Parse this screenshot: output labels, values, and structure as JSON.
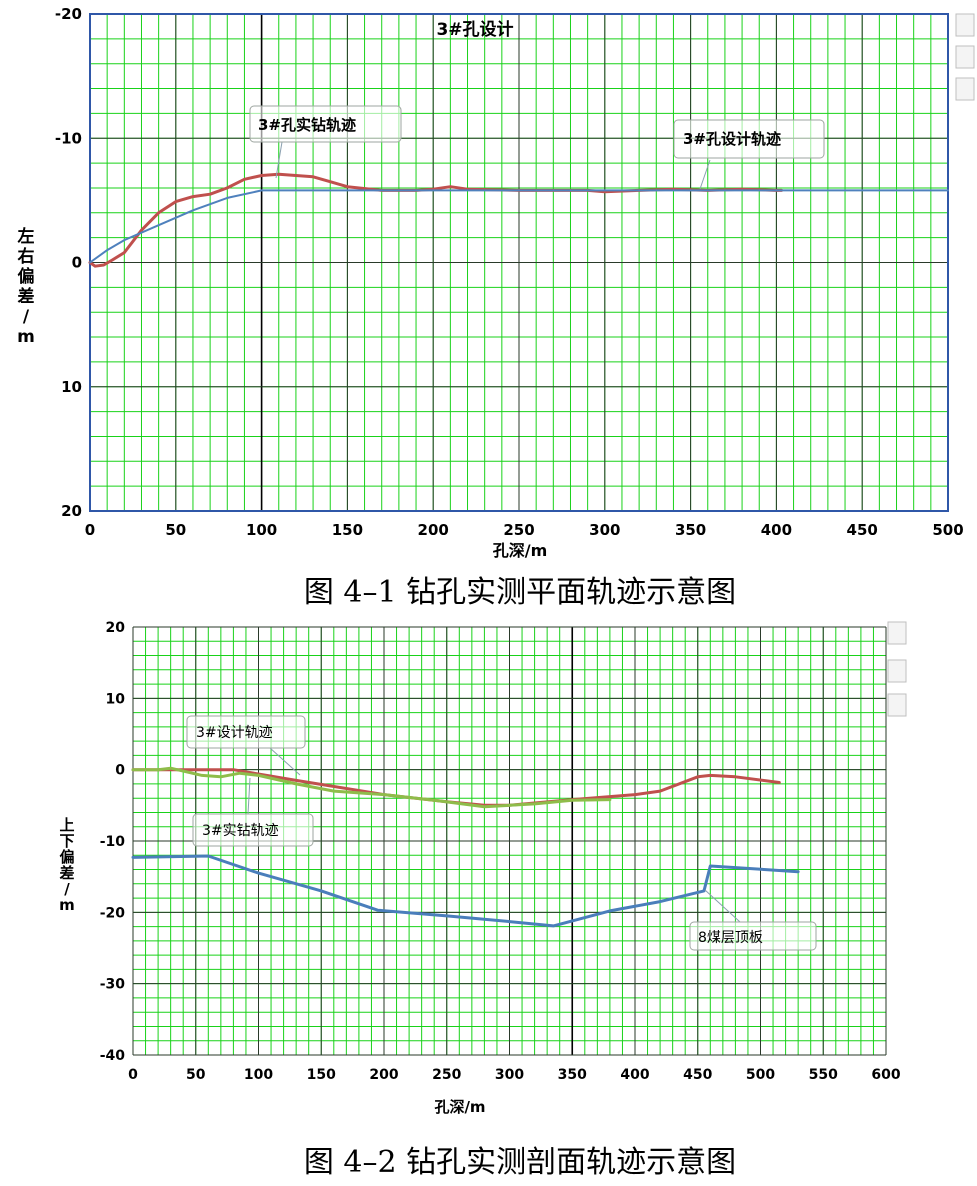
{
  "colors": {
    "grid_minor": "#19d219",
    "grid_major": "#000000",
    "frame": "#2f57a8",
    "actual": "#c0504d",
    "design1": "#4f81bd",
    "design2": "#8fbc4a",
    "coal": "#4a7ebb"
  },
  "chart_data": [
    {
      "type": "line",
      "title": "3#孔设计",
      "xlabel": "孔深/m",
      "ylabel": "左右偏差/m",
      "xlim": [
        0,
        500
      ],
      "ylim": [
        -20,
        20
      ],
      "y_inverted": true,
      "grid": true,
      "x_ticks": [
        "0",
        "50",
        "100",
        "150",
        "200",
        "250",
        "300",
        "350",
        "400",
        "450",
        "500"
      ],
      "y_ticks": [
        "-20",
        "-10",
        "0",
        "10",
        "20"
      ],
      "series": [
        {
          "name": "3#孔实钻轨迹",
          "color_key": "actual",
          "x": [
            0,
            3,
            8,
            13,
            20,
            30,
            40,
            50,
            60,
            70,
            80,
            90,
            100,
            110,
            120,
            130,
            140,
            150,
            170,
            190,
            200,
            210,
            220,
            250,
            270,
            290,
            300,
            320,
            340,
            360,
            380,
            400,
            403
          ],
          "y": [
            0,
            0.3,
            0.2,
            -0.2,
            -0.8,
            -2.6,
            -4.0,
            -4.9,
            -5.3,
            -5.5,
            -6.0,
            -6.7,
            -7.0,
            -7.1,
            -7.0,
            -6.9,
            -6.5,
            -6.1,
            -5.8,
            -5.8,
            -5.9,
            -6.1,
            -5.9,
            -5.8,
            -5.8,
            -5.8,
            -5.7,
            -5.8,
            -5.9,
            -5.8,
            -5.9,
            -5.8,
            -5.8
          ]
        },
        {
          "name": "3#孔设计轨迹",
          "color_key": "design1",
          "x": [
            0,
            10,
            20,
            40,
            60,
            80,
            100,
            500
          ],
          "y": [
            0,
            -1.0,
            -1.8,
            -3.0,
            -4.2,
            -5.2,
            -5.8,
            -5.8
          ]
        }
      ],
      "annotations": [
        {
          "text": "3#孔实钻轨迹"
        },
        {
          "text": "3#孔设计轨迹"
        }
      ],
      "caption": "图 4–1 钻孔实测平面轨迹示意图"
    },
    {
      "type": "line",
      "xlabel": "孔深/m",
      "ylabel": "上下偏差/m",
      "xlim": [
        0,
        600
      ],
      "ylim": [
        -40,
        20
      ],
      "grid": true,
      "x_ticks": [
        "0",
        "50",
        "100",
        "150",
        "200",
        "250",
        "300",
        "350",
        "400",
        "450",
        "500",
        "550",
        "600"
      ],
      "y_ticks": [
        "20",
        "10",
        "0",
        "-10",
        "-20",
        "-30",
        "-40"
      ],
      "series": [
        {
          "name": "3#设计轨迹",
          "color_key": "actual",
          "x": [
            0,
            80,
            130,
            200,
            250,
            280,
            300,
            350,
            400,
            420,
            450,
            460,
            480,
            515
          ],
          "y": [
            0,
            0,
            -1.5,
            -3.5,
            -4.5,
            -5.0,
            -5.0,
            -4.2,
            -3.5,
            -3.0,
            -1.0,
            -0.8,
            -1.0,
            -1.8
          ]
        },
        {
          "name": "3#实钻轨迹",
          "color_key": "design2",
          "x": [
            0,
            20,
            30,
            40,
            55,
            70,
            85,
            100,
            130,
            160,
            200,
            240,
            280,
            300,
            320,
            350,
            380
          ],
          "y": [
            0,
            0,
            0.2,
            -0.2,
            -0.8,
            -1.0,
            -0.5,
            -0.8,
            -2.0,
            -3.0,
            -3.5,
            -4.3,
            -5.2,
            -5.0,
            -4.8,
            -4.3,
            -4.2
          ]
        },
        {
          "name": "8煤层顶板",
          "color_key": "coal",
          "x": [
            0,
            60,
            100,
            150,
            195,
            250,
            300,
            335,
            380,
            420,
            455,
            460,
            530
          ],
          "y": [
            -12.3,
            -12.1,
            -14.5,
            -17,
            -19.7,
            -20.5,
            -21.3,
            -21.9,
            -19.8,
            -18.5,
            -17.0,
            -13.5,
            -14.3
          ]
        }
      ],
      "annotations": [
        {
          "text": "3#设计轨迹"
        },
        {
          "text": "3#实钻轨迹"
        },
        {
          "text": "8煤层顶板"
        }
      ],
      "caption": "图 4–2 钻孔实测剖面轨迹示意图"
    }
  ]
}
